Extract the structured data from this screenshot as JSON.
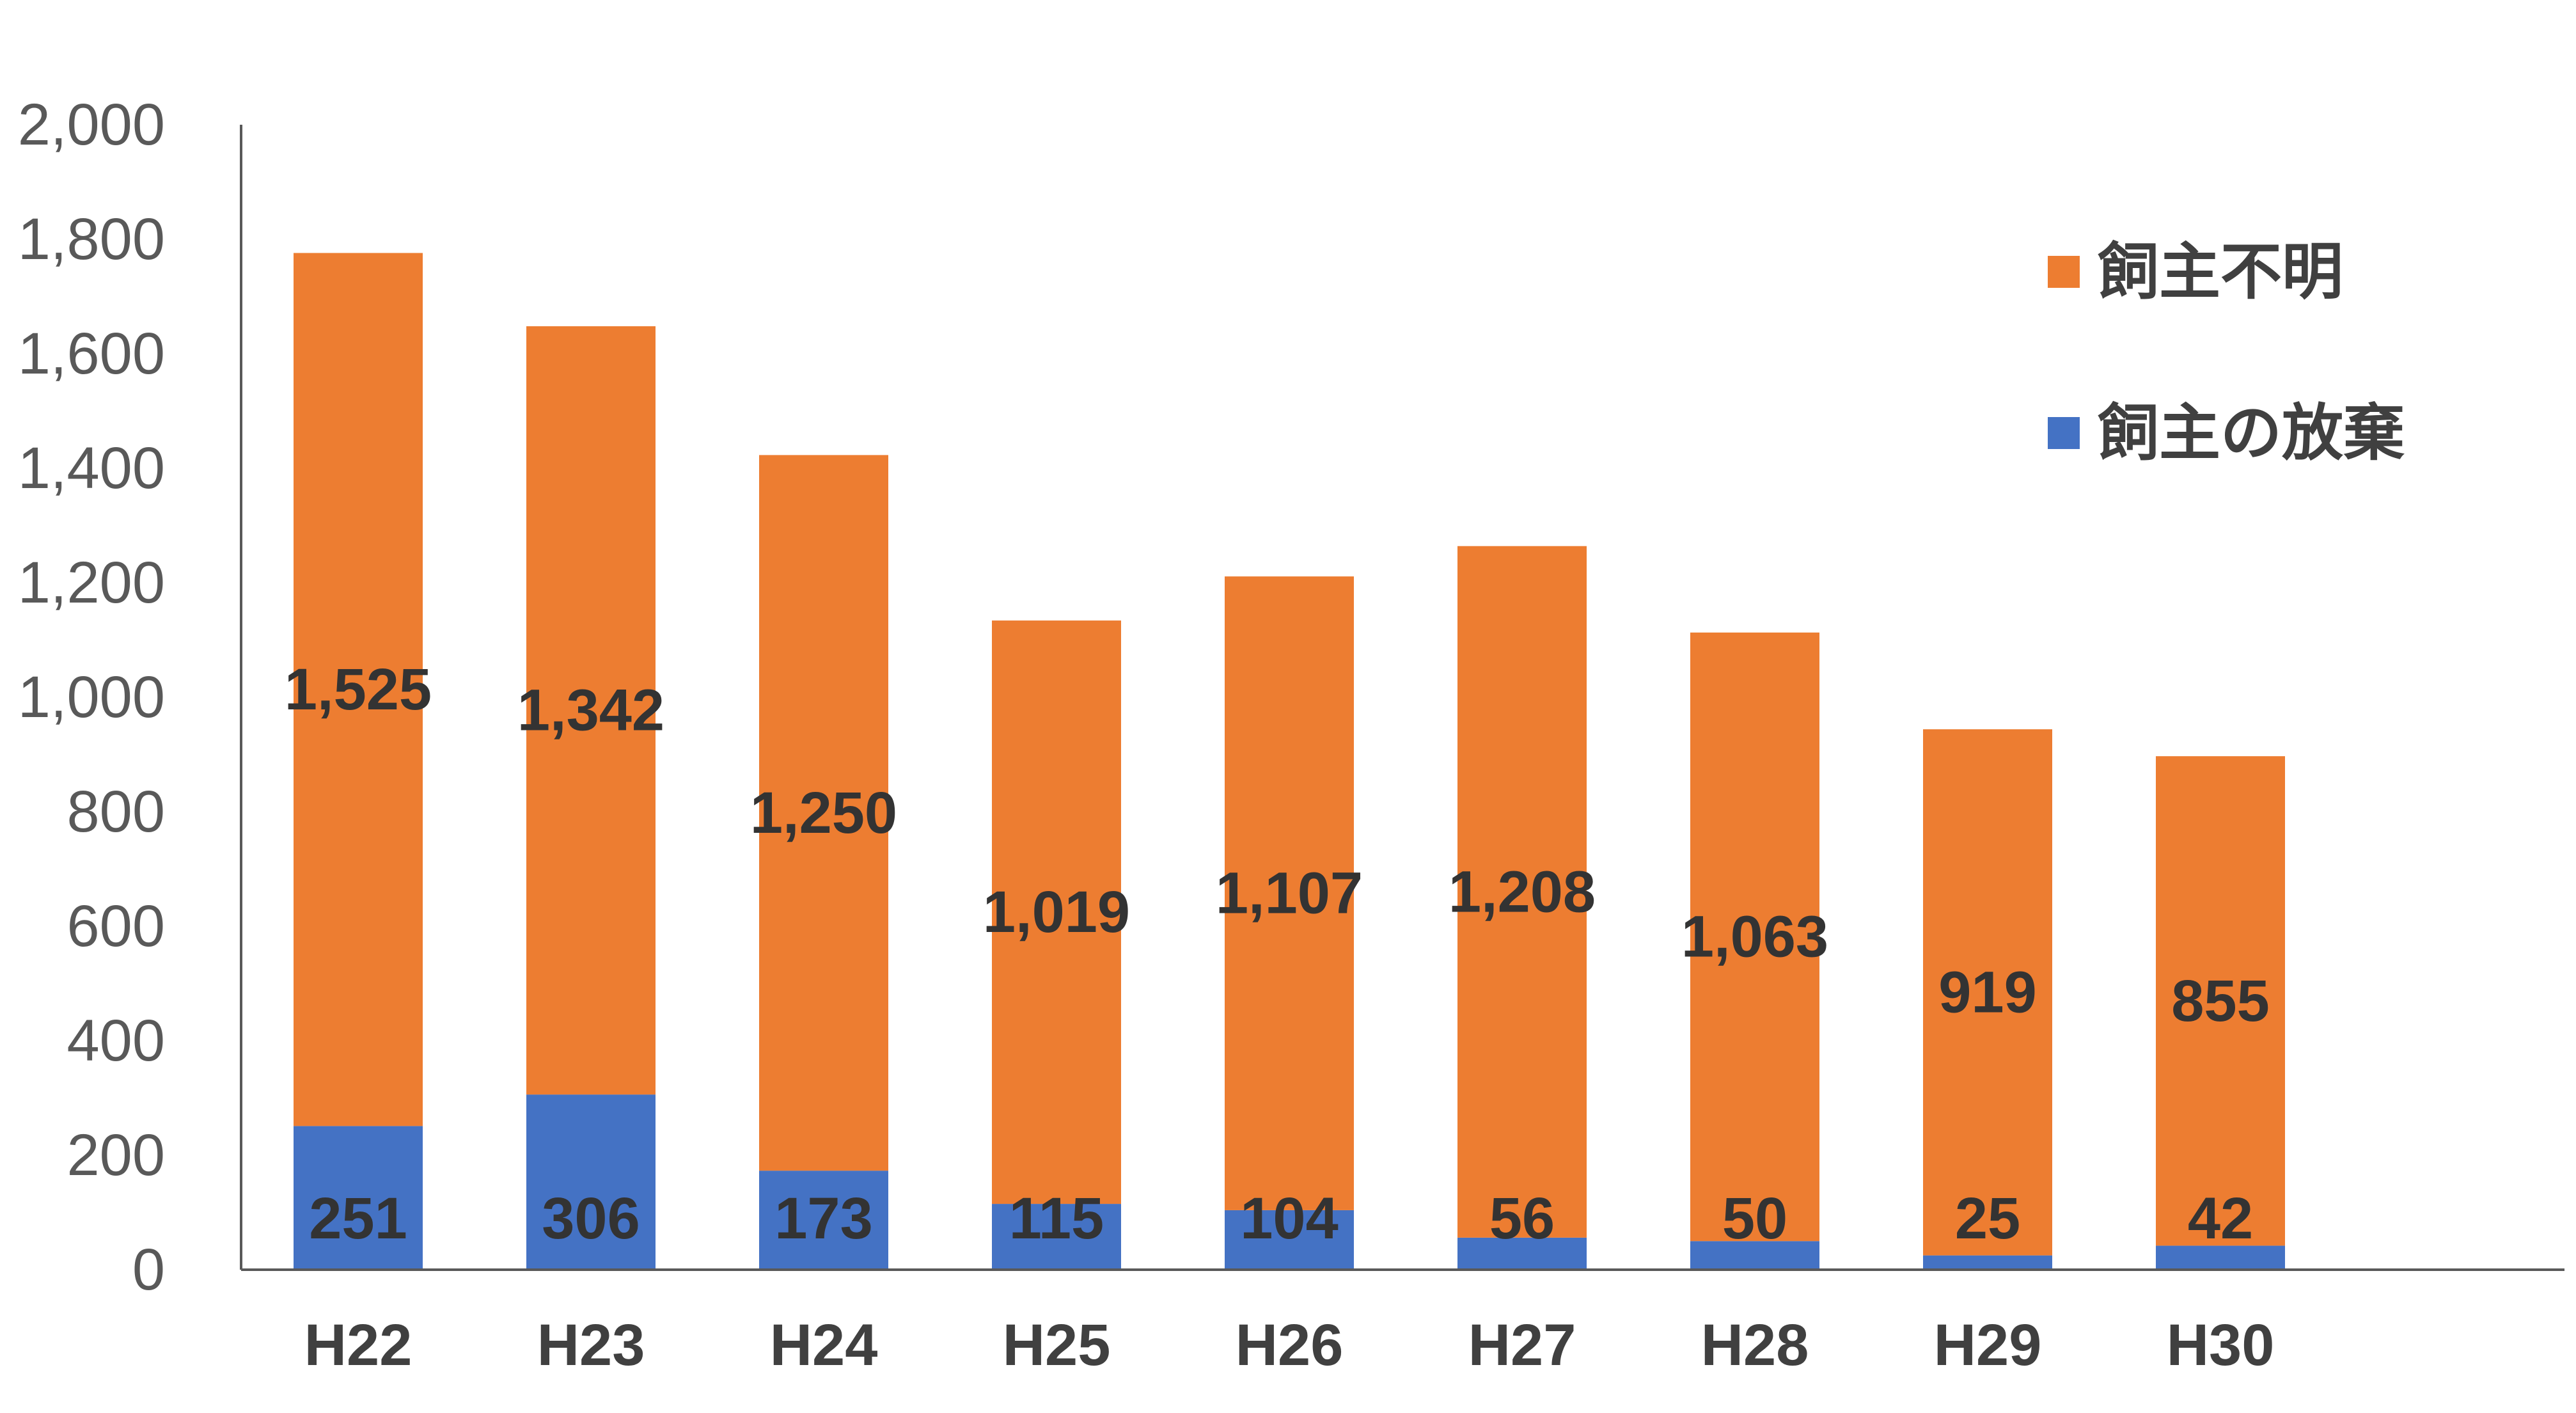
{
  "chart_data": {
    "type": "bar",
    "stacked": true,
    "categories": [
      "H22",
      "H23",
      "H24",
      "H25",
      "H26",
      "H27",
      "H28",
      "H29",
      "H30"
    ],
    "series": [
      {
        "name": "飼主の放棄",
        "color": "#4472C4",
        "values": [
          251,
          306,
          173,
          115,
          104,
          56,
          50,
          25,
          42
        ],
        "labels": [
          "251",
          "306",
          "173",
          "115",
          "104",
          "56",
          "50",
          "25",
          "42"
        ]
      },
      {
        "name": "飼主不明",
        "color": "#ED7D31",
        "values": [
          1525,
          1342,
          1250,
          1019,
          1107,
          1208,
          1063,
          919,
          855
        ],
        "labels": [
          "1,525",
          "1,342",
          "1,250",
          "1,019",
          "1,107",
          "1,208",
          "1,063",
          "919",
          "855"
        ]
      }
    ],
    "ylim": [
      0,
      2000
    ],
    "yticks": [
      0,
      200,
      400,
      600,
      800,
      1000,
      1200,
      1400,
      1600,
      1800,
      2000
    ],
    "ytick_labels": [
      "0",
      "200",
      "400",
      "600",
      "800",
      "1,000",
      "1,200",
      "1,400",
      "1,600",
      "1,800",
      "2,000"
    ],
    "title": "",
    "xlabel": "",
    "ylabel": "",
    "grid": false,
    "legend": {
      "position": "top-right",
      "order": [
        "飼主不明",
        "飼主の放棄"
      ]
    }
  }
}
